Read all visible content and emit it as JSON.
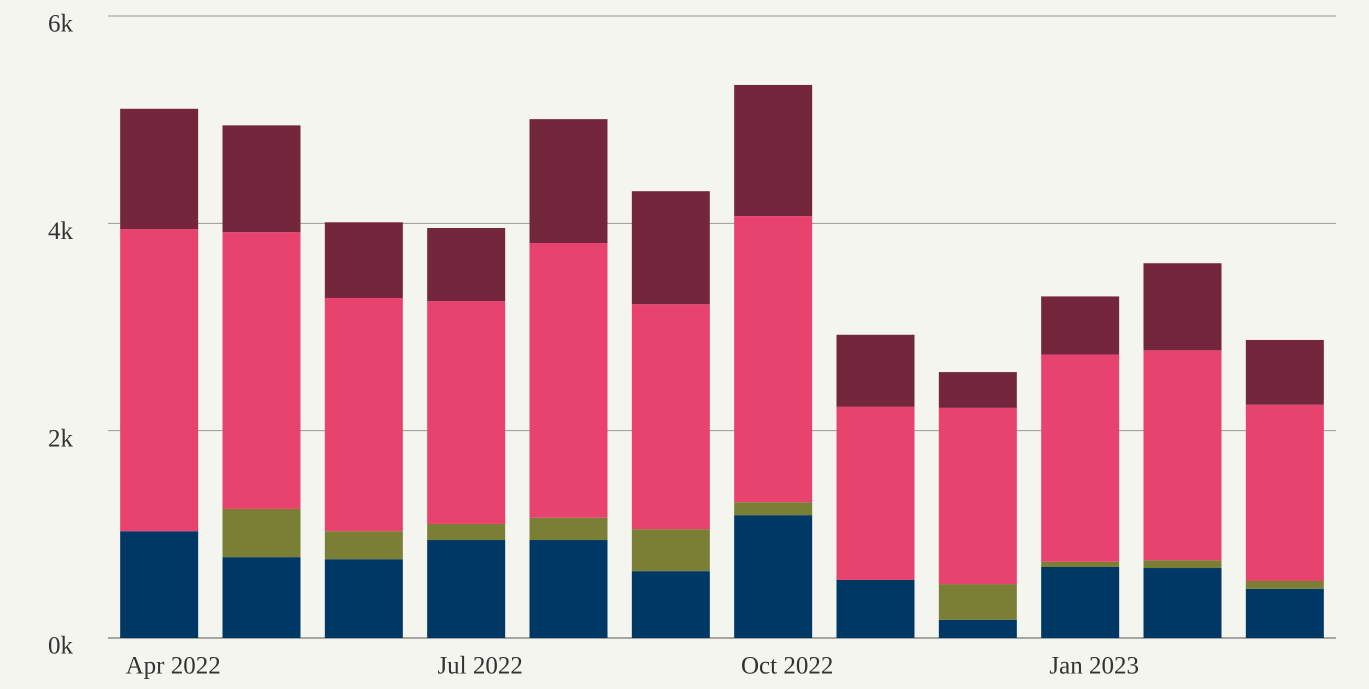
{
  "chart_data": {
    "type": "stacked-bar",
    "categories": [
      "Apr 2022",
      null,
      null,
      "Jul 2022",
      null,
      null,
      "Oct 2022",
      null,
      null,
      "Jan 2023",
      null,
      null
    ],
    "series": [
      {
        "color": "#003865",
        "values": [
          1030,
          780,
          760,
          945,
          945,
          645,
          1185,
          560,
          175,
          685,
          675,
          475
        ]
      },
      {
        "color": "#7a7f35",
        "values": [
          0,
          465,
          270,
          155,
          215,
          405,
          125,
          0,
          345,
          50,
          75,
          75
        ]
      },
      {
        "color": "#e8436f",
        "values": [
          2915,
          2670,
          2250,
          2150,
          2650,
          2170,
          2760,
          1670,
          1700,
          2000,
          2025,
          1700
        ]
      },
      {
        "color": "#74263c",
        "values": [
          1160,
          1030,
          730,
          705,
          1195,
          1090,
          1265,
          695,
          345,
          560,
          840,
          625
        ]
      }
    ],
    "ylim": [
      0,
      6000
    ],
    "yticks": [
      {
        "value": 0,
        "label": "0k"
      },
      {
        "value": 2000,
        "label": "2k"
      },
      {
        "value": 4000,
        "label": "4k"
      },
      {
        "value": 6000,
        "label": "6k"
      }
    ],
    "grid": true
  }
}
